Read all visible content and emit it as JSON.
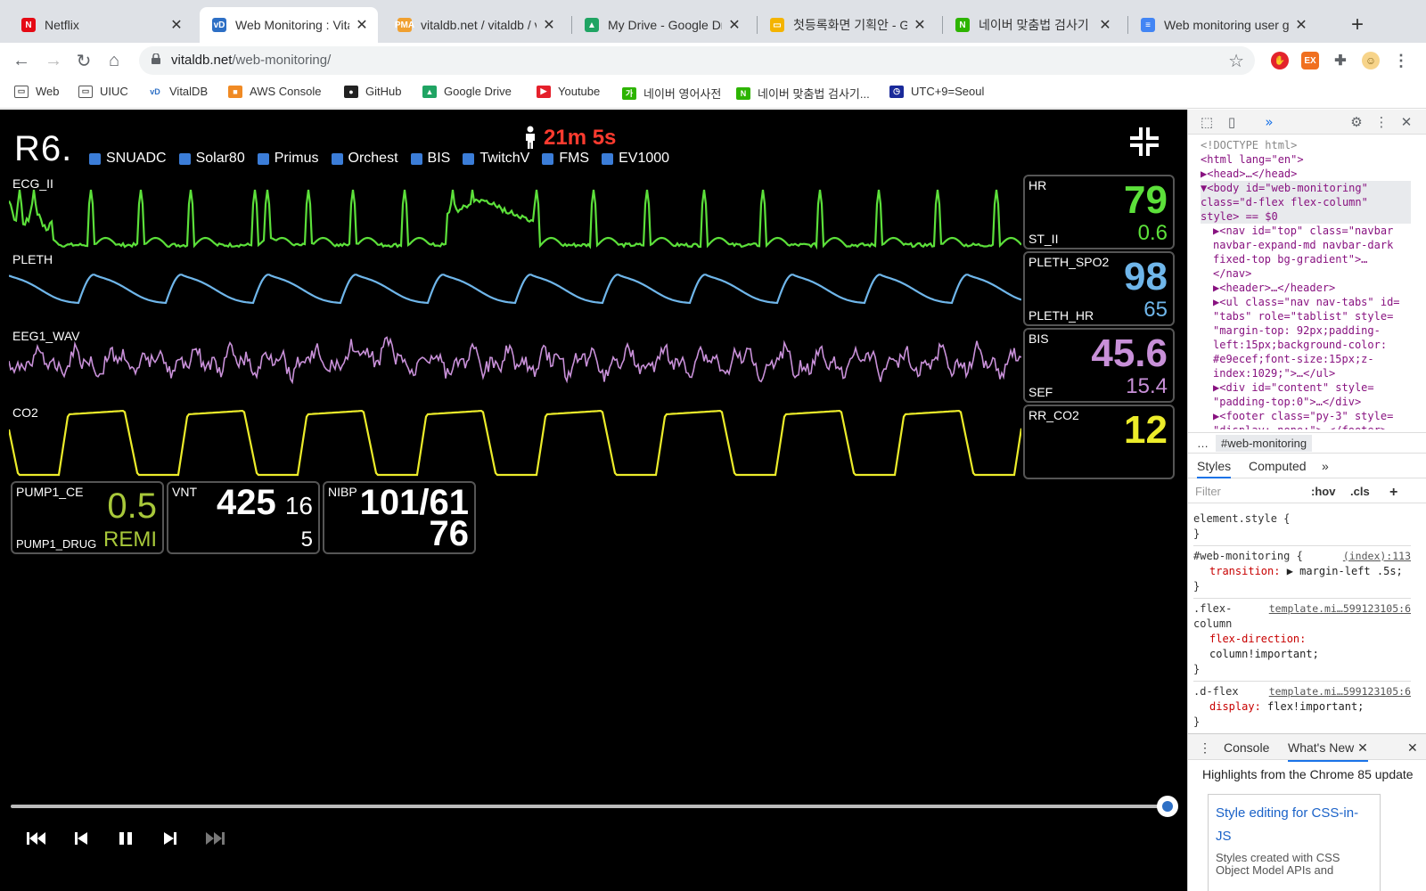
{
  "browser": {
    "tabs": [
      {
        "title": "Netflix",
        "favicon": "N",
        "color": "#e50914",
        "active": false
      },
      {
        "title": "Web Monitoring : Vital",
        "favicon": "vD",
        "color": "#2d6fc5",
        "active": true
      },
      {
        "title": "vitaldb.net / vitaldb / v",
        "favicon": "PMA",
        "color": "#f0a030",
        "active": false
      },
      {
        "title": "My Drive - Google Driv",
        "favicon": "▲",
        "color": "#1fa463",
        "active": false
      },
      {
        "title": "첫등록화면 기획안 - Goog",
        "favicon": "▭",
        "color": "#f4b400",
        "active": false
      },
      {
        "title": "네이버 맞춤법 검사기 : 네이",
        "favicon": "N",
        "color": "#2db400",
        "active": false
      },
      {
        "title": "Web monitoring user g",
        "favicon": "≡",
        "color": "#4285f4",
        "active": false
      }
    ],
    "url_domain": "vitaldb.net",
    "url_path": "/web-monitoring/",
    "bookmarks": [
      {
        "label": "Web",
        "icon": "folder-icon"
      },
      {
        "label": "UIUC",
        "icon": "folder-icon"
      },
      {
        "label": "VitalDB",
        "icon": "vitaldb-icon"
      },
      {
        "label": "AWS Console",
        "icon": "aws-icon"
      },
      {
        "label": "GitHub",
        "icon": "github-icon"
      },
      {
        "label": "Google Drive",
        "icon": "drive-icon"
      },
      {
        "label": "Youtube",
        "icon": "youtube-icon"
      },
      {
        "label": "네이버 영어사전",
        "icon": "naver-dict-icon"
      },
      {
        "label": "네이버 맞춤법 검사기...",
        "icon": "naver-icon"
      },
      {
        "label": "UTC+9=Seoul",
        "icon": "clock-icon"
      }
    ]
  },
  "monitor": {
    "room": "R6.",
    "elapsed": "21m 5s",
    "devices": [
      "SNUADC",
      "Solar80",
      "Primus",
      "Orchest",
      "BIS",
      "TwitchV",
      "FMS",
      "EV1000"
    ],
    "waves": [
      {
        "label": "ECG_II",
        "color": "#5ce03a"
      },
      {
        "label": "PLETH",
        "color": "#6fb6ea"
      },
      {
        "label": "EEG1_WAV",
        "color": "#c890d8"
      },
      {
        "label": "CO2",
        "color": "#ecec2a"
      }
    ],
    "vitals": [
      {
        "label": "HR",
        "value": "79",
        "sublabel": "ST_II",
        "subvalue": "0.6",
        "color": "#5ce03a"
      },
      {
        "label": "PLETH_SPO2",
        "value": "98",
        "sublabel": "PLETH_HR",
        "subvalue": "65",
        "color": "#6fb6ea"
      },
      {
        "label": "BIS",
        "value": "45.6",
        "sublabel": "SEF",
        "subvalue": "15.4",
        "color": "#c890d8"
      },
      {
        "label": "RR_CO2",
        "value": "12",
        "sublabel": "",
        "subvalue": "",
        "color": "#ecec2a"
      }
    ],
    "pump": {
      "label": "PUMP1_CE",
      "value": "0.5",
      "drug_label": "PUMP1_DRUG",
      "drug": "REMI",
      "color": "#a8c83a"
    },
    "vnt": {
      "label": "VNT",
      "tv": "425",
      "rr": "16",
      "peep": "5"
    },
    "nibp": {
      "label": "NIBP",
      "sysdia": "101/61",
      "mean": "76"
    },
    "playback_progress": 1.0
  },
  "devtools": {
    "dom_lines": [
      "<!DOCTYPE html>",
      "<html lang=\"en\">",
      "▶<head>…</head>",
      "▼<body id=\"web-monitoring\"",
      "class=\"d-flex flex-column\"",
      "style> == $0",
      "▶<nav id=\"top\" class=\"navbar",
      "navbar-expand-md navbar-dark",
      "fixed-top bg-gradient\">…",
      "</nav>",
      "▶<header>…</header>",
      "▶<ul class=\"nav nav-tabs\" id=",
      "\"tabs\" role=\"tablist\" style=",
      "\"margin-top: 92px;padding-",
      "left:15px;background-color:",
      "#e9ecef;font-size:15px;z-",
      "index:1029;\">…</ul>",
      "▶<div id=\"content\" style=",
      "\"padding-top:0\">…</div>",
      "▶<footer class=\"py-3\" style=",
      "\"display: none;\">…</footer>"
    ],
    "crumb": "#web-monitoring",
    "styles_tabs": [
      "Styles",
      "Computed"
    ],
    "filter_placeholder": "Filter",
    "hov": ":hov",
    "cls": ".cls",
    "rules": [
      {
        "selector": "element.style {",
        "src": "",
        "prop": "",
        "val": ""
      },
      {
        "selector": "#web-monitoring {",
        "src": "(index):113",
        "prop": "transition:",
        "val": "▶ margin-left .5s;"
      },
      {
        "selector": ".flex-column",
        "src": "template.mi…599123105:6",
        "prop": "flex-direction:",
        "val": "column!important;"
      },
      {
        "selector": ".d-flex",
        "src": "template.mi…599123105:6",
        "prop": "display:",
        "val": "flex!important;"
      }
    ],
    "drawer_tabs": [
      "Console",
      "What's New"
    ],
    "whatsnew_header": "Highlights from the Chrome 85 update",
    "card_title": "Style editing for CSS-in-JS",
    "card_desc": "Styles created with CSS Object Model APIs and"
  }
}
